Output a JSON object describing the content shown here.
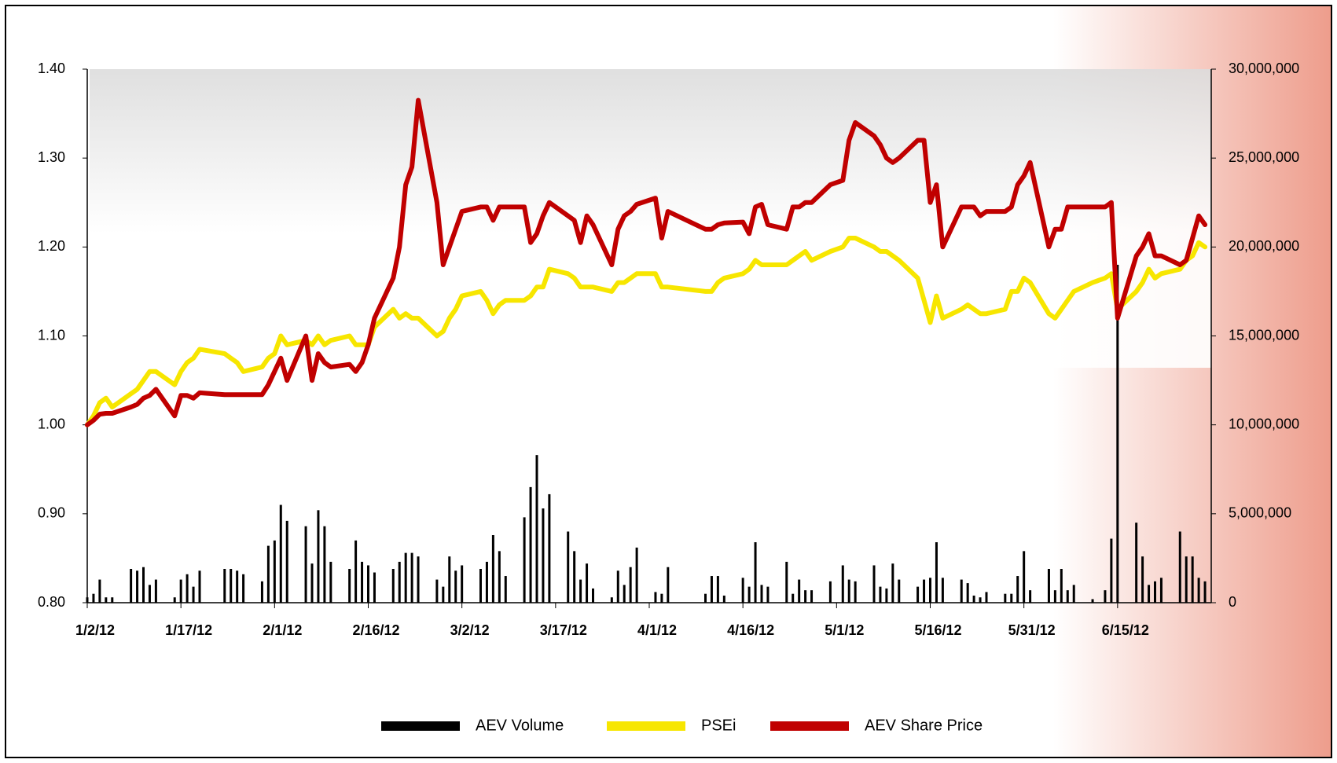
{
  "chart_data": {
    "type": "line",
    "x": [
      "1/2/12",
      "1/3/12",
      "1/4/12",
      "1/5/12",
      "1/6/12",
      "1/9/12",
      "1/10/12",
      "1/11/12",
      "1/12/12",
      "1/13/12",
      "1/16/12",
      "1/17/12",
      "1/18/12",
      "1/19/12",
      "1/20/12",
      "1/24/12",
      "1/25/12",
      "1/26/12",
      "1/27/12",
      "1/30/12",
      "1/31/12",
      "2/1/12",
      "2/2/12",
      "2/3/12",
      "2/6/12",
      "2/7/12",
      "2/8/12",
      "2/9/12",
      "2/10/12",
      "2/13/12",
      "2/14/12",
      "2/15/12",
      "2/16/12",
      "2/17/12",
      "2/20/12",
      "2/21/12",
      "2/22/12",
      "2/23/12",
      "2/24/12",
      "2/27/12",
      "2/28/12",
      "2/29/12",
      "3/1/12",
      "3/2/12",
      "3/5/12",
      "3/6/12",
      "3/7/12",
      "3/8/12",
      "3/9/12",
      "3/12/12",
      "3/13/12",
      "3/14/12",
      "3/15/12",
      "3/16/12",
      "3/19/12",
      "3/20/12",
      "3/21/12",
      "3/22/12",
      "3/23/12",
      "3/26/12",
      "3/27/12",
      "3/28/12",
      "3/29/12",
      "3/30/12",
      "4/2/12",
      "4/3/12",
      "4/4/12",
      "4/10/12",
      "4/11/12",
      "4/12/12",
      "4/13/12",
      "4/16/12",
      "4/17/12",
      "4/18/12",
      "4/19/12",
      "4/20/12",
      "4/23/12",
      "4/24/12",
      "4/25/12",
      "4/26/12",
      "4/27/12",
      "4/30/12",
      "5/2/12",
      "5/3/12",
      "5/4/12",
      "5/7/12",
      "5/8/12",
      "5/9/12",
      "5/10/12",
      "5/11/12",
      "5/14/12",
      "5/15/12",
      "5/16/12",
      "5/17/12",
      "5/18/12",
      "5/21/12",
      "5/22/12",
      "5/23/12",
      "5/24/12",
      "5/25/12",
      "5/28/12",
      "5/29/12",
      "5/30/12",
      "5/31/12",
      "6/1/12",
      "6/4/12",
      "6/5/12",
      "6/6/12",
      "6/7/12",
      "6/8/12",
      "6/11/12",
      "6/13/12",
      "6/14/12",
      "6/15/12",
      "6/18/12",
      "6/19/12",
      "6/20/12",
      "6/21/12",
      "6/22/12",
      "6/25/12",
      "6/26/12",
      "6/27/12",
      "6/28/12",
      "6/29/12"
    ],
    "series": [
      {
        "name": "AEV Volume",
        "type": "bar",
        "axis": "y2",
        "color": "#000000",
        "values": [
          300000,
          500000,
          1300000,
          300000,
          300000,
          1900000,
          1800000,
          2000000,
          1000000,
          1300000,
          300000,
          1300000,
          1600000,
          900000,
          1800000,
          1900000,
          1900000,
          1800000,
          1600000,
          1200000,
          3200000,
          3500000,
          5500000,
          4600000,
          4300000,
          2200000,
          5200000,
          4300000,
          2300000,
          1900000,
          3500000,
          2300000,
          2100000,
          1700000,
          1900000,
          2300000,
          2800000,
          2800000,
          2600000,
          1300000,
          900000,
          2600000,
          1800000,
          2100000,
          1900000,
          2300000,
          3800000,
          2900000,
          1500000,
          4800000,
          6500000,
          8300000,
          5300000,
          6100000,
          4000000,
          2900000,
          1300000,
          2200000,
          800000,
          300000,
          1800000,
          1000000,
          2000000,
          3100000,
          600000,
          500000,
          2000000,
          500000,
          1500000,
          1500000,
          400000,
          1400000,
          900000,
          3400000,
          1000000,
          900000,
          2300000,
          500000,
          1300000,
          700000,
          700000,
          1200000,
          2100000,
          1300000,
          1200000,
          2100000,
          900000,
          800000,
          2200000,
          1300000,
          900000,
          1300000,
          1400000,
          3400000,
          1400000,
          1300000,
          1100000,
          400000,
          300000,
          600000,
          500000,
          500000,
          1500000,
          2900000,
          700000,
          1900000,
          700000,
          1900000,
          700000,
          1000000,
          200000,
          700000,
          3600000,
          19000000,
          4500000,
          2600000,
          1000000,
          1200000,
          1400000,
          4000000,
          2600000,
          2600000,
          1400000,
          1200000
        ]
      },
      {
        "name": "PSEi",
        "type": "line",
        "axis": "y",
        "color": "#f7e600",
        "values": [
          1.0,
          1.01,
          1.025,
          1.03,
          1.02,
          1.035,
          1.04,
          1.05,
          1.06,
          1.06,
          1.045,
          1.06,
          1.07,
          1.075,
          1.085,
          1.08,
          1.075,
          1.07,
          1.06,
          1.065,
          1.075,
          1.08,
          1.1,
          1.09,
          1.095,
          1.09,
          1.1,
          1.09,
          1.095,
          1.1,
          1.09,
          1.09,
          1.09,
          1.11,
          1.13,
          1.12,
          1.125,
          1.12,
          1.12,
          1.1,
          1.105,
          1.12,
          1.13,
          1.145,
          1.15,
          1.14,
          1.125,
          1.135,
          1.14,
          1.14,
          1.145,
          1.155,
          1.155,
          1.175,
          1.17,
          1.165,
          1.155,
          1.155,
          1.155,
          1.15,
          1.16,
          1.16,
          1.165,
          1.17,
          1.17,
          1.155,
          1.155,
          1.15,
          1.15,
          1.16,
          1.165,
          1.17,
          1.175,
          1.185,
          1.18,
          1.18,
          1.18,
          1.185,
          1.19,
          1.195,
          1.185,
          1.195,
          1.2,
          1.21,
          1.21,
          1.2,
          1.195,
          1.195,
          1.19,
          1.185,
          1.165,
          1.14,
          1.115,
          1.145,
          1.12,
          1.13,
          1.135,
          1.13,
          1.125,
          1.125,
          1.13,
          1.15,
          1.15,
          1.165,
          1.16,
          1.125,
          1.12,
          1.13,
          1.14,
          1.15,
          1.16,
          1.165,
          1.17,
          1.13,
          1.15,
          1.16,
          1.175,
          1.165,
          1.17,
          1.175,
          1.185,
          1.19,
          1.205,
          1.2
        ]
      },
      {
        "name": "AEV Share Price",
        "type": "line",
        "axis": "y",
        "color": "#c00000",
        "values": [
          1.0,
          1.005,
          1.012,
          1.013,
          1.013,
          1.02,
          1.023,
          1.03,
          1.033,
          1.04,
          1.01,
          1.033,
          1.033,
          1.03,
          1.036,
          1.034,
          1.034,
          1.034,
          1.034,
          1.034,
          1.045,
          1.06,
          1.075,
          1.05,
          1.1,
          1.05,
          1.08,
          1.07,
          1.065,
          1.068,
          1.06,
          1.07,
          1.09,
          1.12,
          1.165,
          1.2,
          1.27,
          1.29,
          1.365,
          1.25,
          1.18,
          1.2,
          1.22,
          1.24,
          1.245,
          1.245,
          1.23,
          1.245,
          1.245,
          1.245,
          1.205,
          1.215,
          1.235,
          1.25,
          1.235,
          1.23,
          1.205,
          1.235,
          1.225,
          1.18,
          1.22,
          1.235,
          1.24,
          1.248,
          1.255,
          1.21,
          1.24,
          1.22,
          1.22,
          1.225,
          1.227,
          1.228,
          1.215,
          1.245,
          1.248,
          1.225,
          1.22,
          1.245,
          1.245,
          1.25,
          1.25,
          1.27,
          1.275,
          1.32,
          1.34,
          1.325,
          1.315,
          1.3,
          1.295,
          1.3,
          1.32,
          1.32,
          1.25,
          1.27,
          1.2,
          1.245,
          1.245,
          1.245,
          1.235,
          1.24,
          1.24,
          1.245,
          1.27,
          1.28,
          1.295,
          1.2,
          1.22,
          1.22,
          1.245,
          1.245,
          1.245,
          1.245,
          1.25,
          1.12,
          1.19,
          1.2,
          1.215,
          1.19,
          1.19,
          1.18,
          1.185,
          1.21,
          1.235,
          1.225
        ]
      }
    ],
    "xlim": [
      "1/2/12",
      "6/30/12"
    ],
    "xticks": [
      "1/2/12",
      "1/17/12",
      "2/1/12",
      "2/16/12",
      "3/2/12",
      "3/17/12",
      "4/1/12",
      "4/16/12",
      "5/1/12",
      "5/16/12",
      "5/31/12",
      "6/15/12"
    ],
    "ylim": [
      0.8,
      1.4
    ],
    "yticks": [
      {
        "value": 0.8,
        "label": "0.80"
      },
      {
        "value": 0.9,
        "label": "0.90"
      },
      {
        "value": 1.0,
        "label": "1.00"
      },
      {
        "value": 1.1,
        "label": "1.10"
      },
      {
        "value": 1.2,
        "label": "1.20"
      },
      {
        "value": 1.3,
        "label": "1.30"
      },
      {
        "value": 1.4,
        "label": "1.40"
      }
    ],
    "y2lim": [
      0,
      30000000
    ],
    "y2ticks": [
      0,
      {
        "value": 5000000,
        "label": "5,000,000"
      },
      {
        "value": 10000000,
        "label": "10,000,000"
      },
      {
        "value": 15000000,
        "label": "15,000,000"
      },
      {
        "value": 20000000,
        "label": "20,000,000"
      },
      {
        "value": 25000000,
        "label": "25,000,000"
      },
      {
        "value": 30000000,
        "label": "30,000,000"
      }
    ],
    "legend": "bottom"
  }
}
